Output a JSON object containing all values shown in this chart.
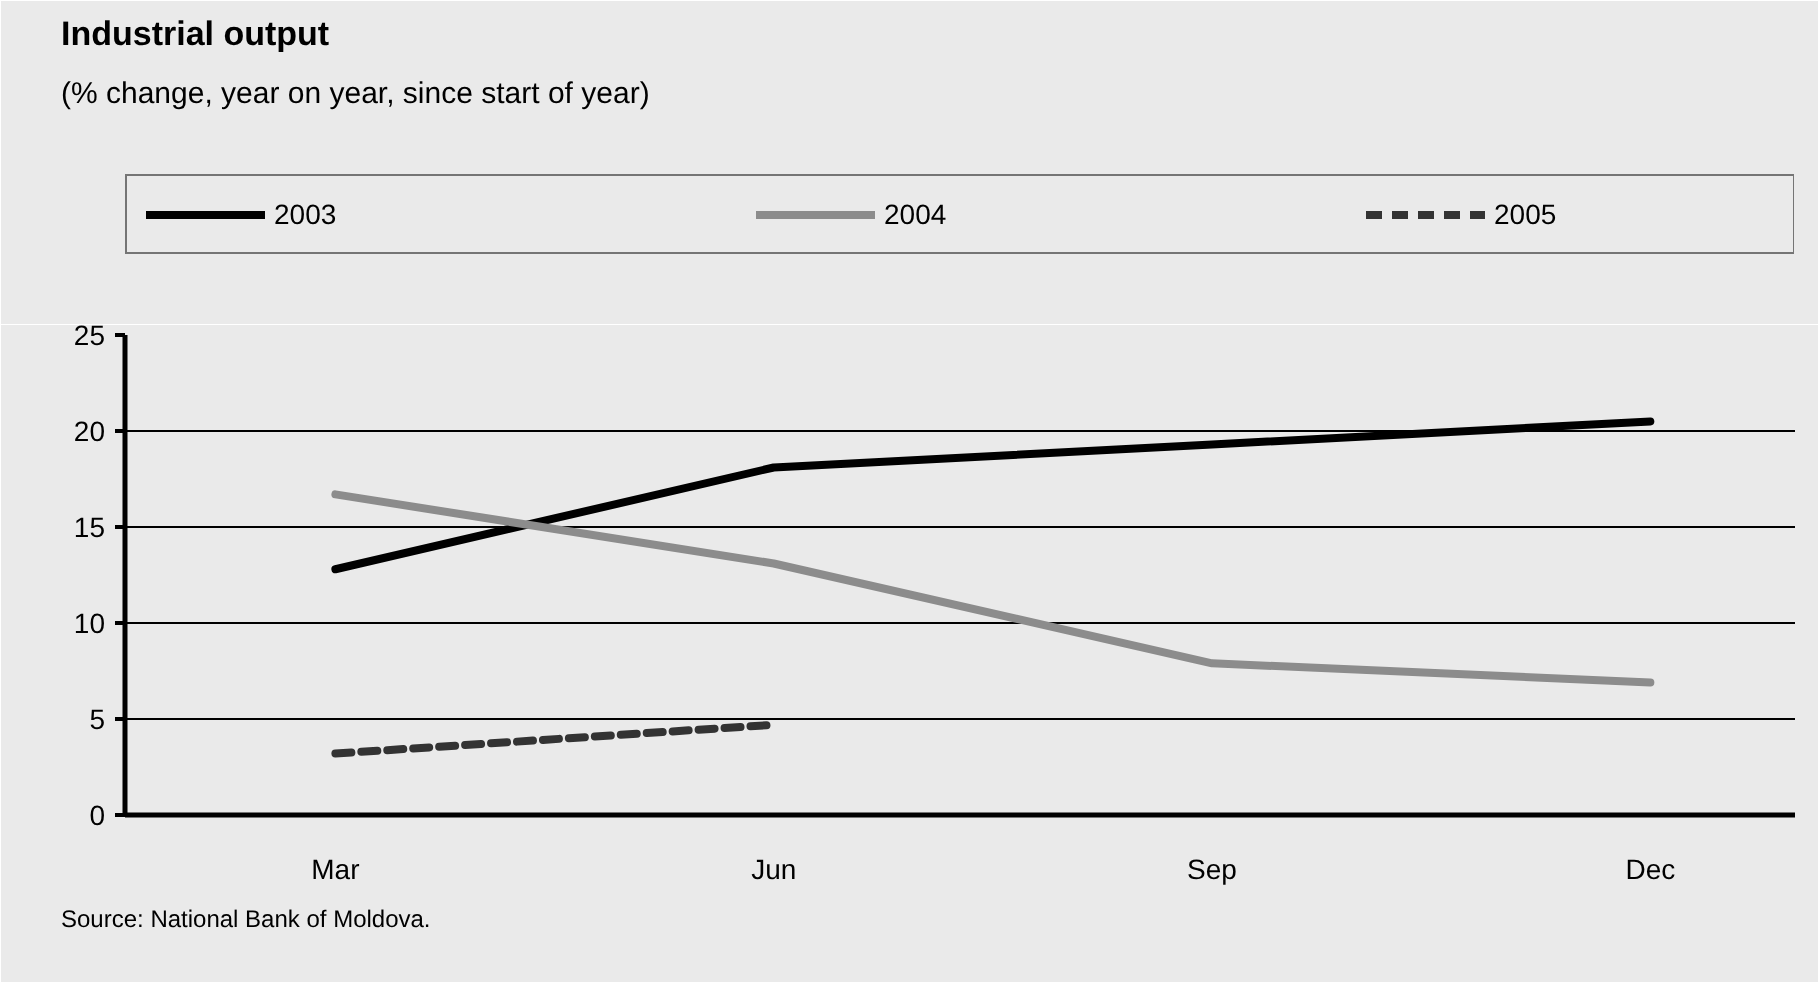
{
  "chart_data": {
    "type": "line",
    "title": "Industrial output",
    "subtitle": "(% change, year on year, since start of year)",
    "categories": [
      "Mar",
      "Jun",
      "Sep",
      "Dec"
    ],
    "series": [
      {
        "name": "2003",
        "color": "#000000",
        "values": [
          12.8,
          18.1,
          19.3,
          20.5
        ]
      },
      {
        "name": "2004",
        "color": "#8c8c8c",
        "values": [
          16.7,
          13.1,
          7.9,
          6.9
        ]
      },
      {
        "name": "2005",
        "color": "#333333",
        "values": [
          3.2,
          4.7,
          null,
          null
        ],
        "line_style": "dashed"
      }
    ],
    "ylim": [
      0,
      25
    ],
    "yticks": [
      0,
      5,
      10,
      15,
      20,
      25
    ],
    "grid": "y",
    "legend": "top",
    "marker": "none",
    "line_style": "solid",
    "annotations": [
      "Source: National Bank of Moldova."
    ]
  }
}
